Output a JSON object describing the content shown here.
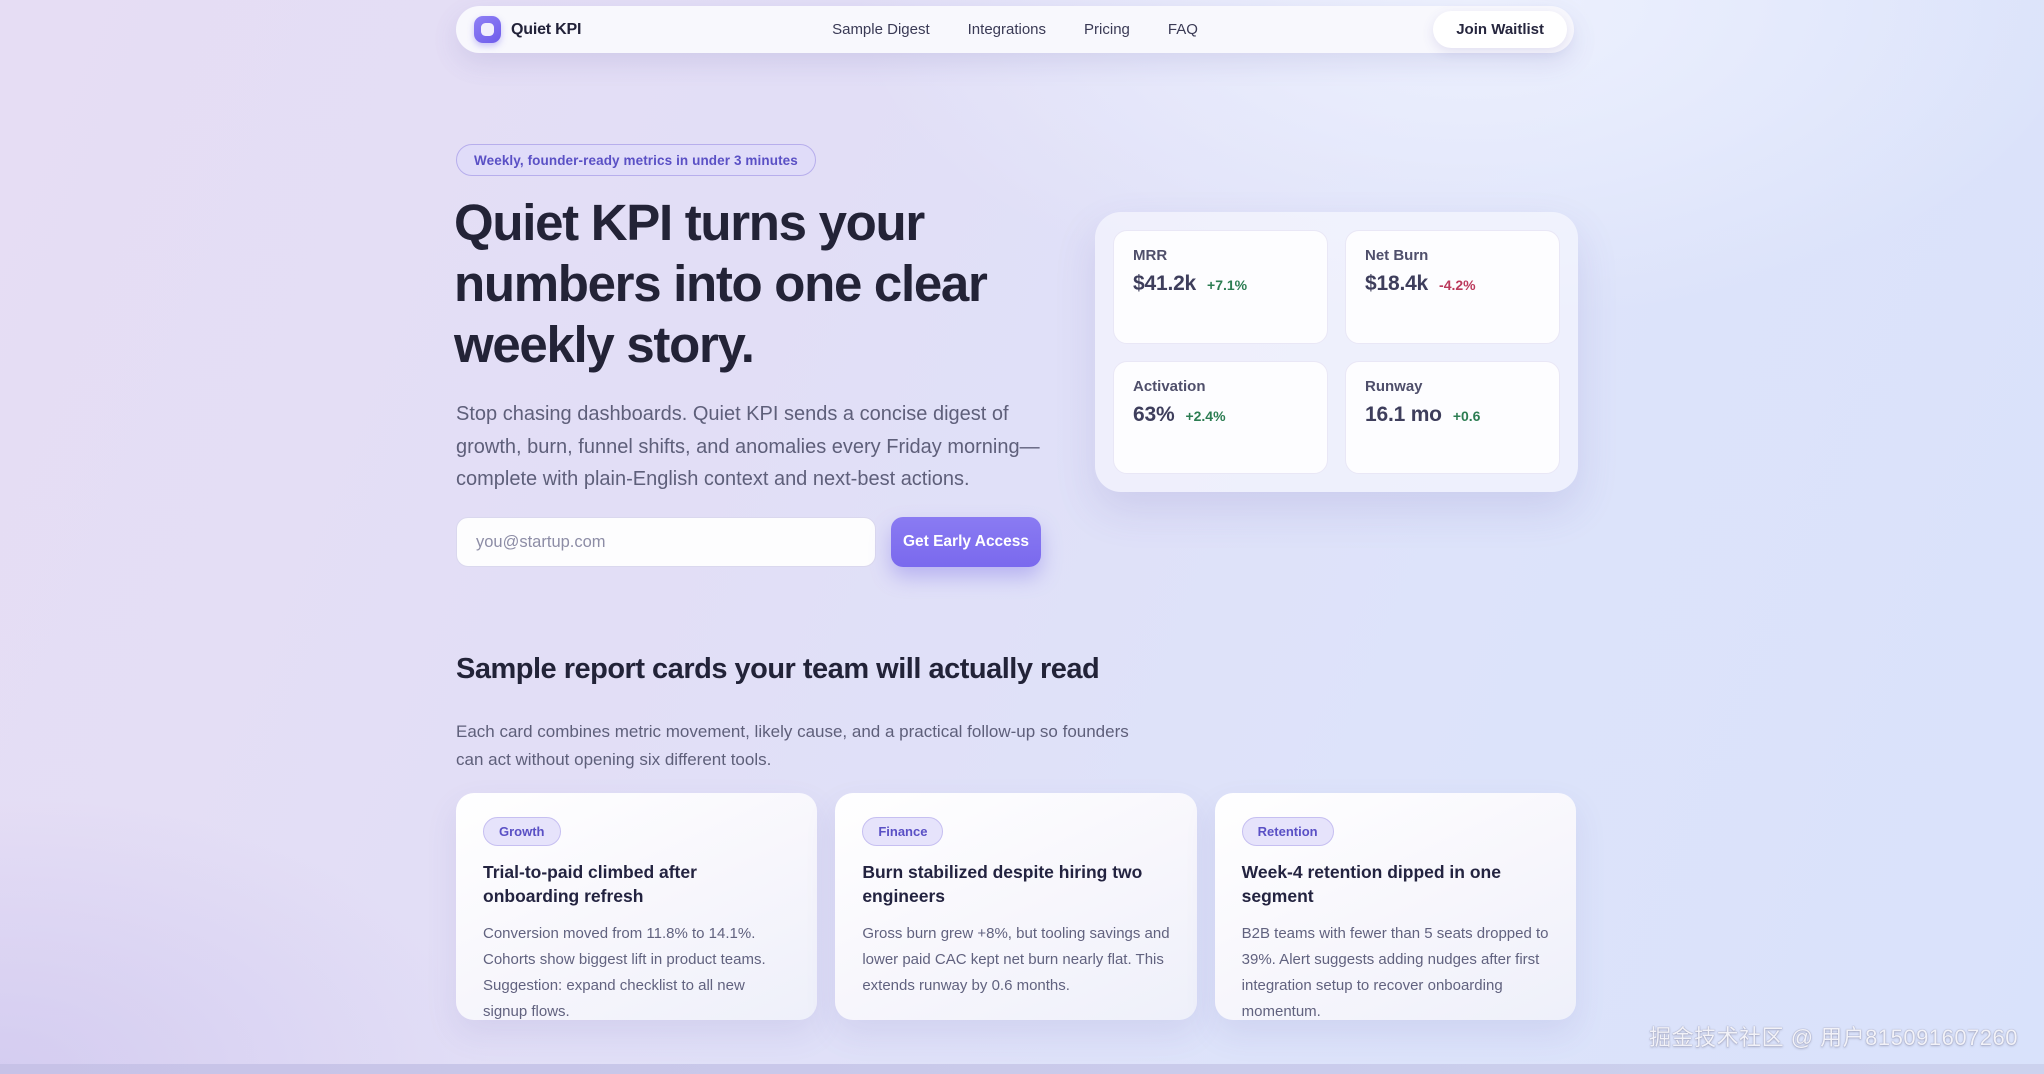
{
  "nav": {
    "brand": "Quiet KPI",
    "links": [
      {
        "label": "Sample Digest"
      },
      {
        "label": "Integrations"
      },
      {
        "label": "Pricing"
      },
      {
        "label": "FAQ"
      }
    ],
    "cta_label": "Join Waitlist"
  },
  "hero": {
    "badge": "Weekly, founder-ready metrics in under 3 minutes",
    "title_lines": [
      "Quiet KPI turns your",
      "numbers into one clear",
      "weekly story."
    ],
    "description": "Stop chasing dashboards. Quiet KPI sends a concise digest of growth, burn, funnel shifts, and anomalies every Friday morning—complete with plain-English context and next-best actions.",
    "email_placeholder": "you@startup.com",
    "cta_label": "Get Early Access",
    "kpis": [
      {
        "label": "MRR",
        "value": "$41.2k",
        "delta": "+7.1%",
        "trend": "up"
      },
      {
        "label": "Net Burn",
        "value": "$18.4k",
        "delta": "-4.2%",
        "trend": "down"
      },
      {
        "label": "Activation",
        "value": "63%",
        "delta": "+2.4%",
        "trend": "up"
      },
      {
        "label": "Runway",
        "value": "16.1 mo",
        "delta": "+0.6",
        "trend": "up"
      }
    ]
  },
  "reports": {
    "title": "Sample report cards your team will actually read",
    "subtitle": "Each card combines metric movement, likely cause, and a practical follow-up so founders can act without opening six different tools.",
    "cards": [
      {
        "tag": "Growth",
        "title": "Trial-to-paid climbed after onboarding refresh",
        "body": "Conversion moved from 11.8% to 14.1%. Cohorts show biggest lift in product teams. Suggestion: expand checklist to all new signup flows."
      },
      {
        "tag": "Finance",
        "title": "Burn stabilized despite hiring two engineers",
        "body": "Gross burn grew +8%, but tooling savings and lower paid CAC kept net burn nearly flat. This extends runway by 0.6 months."
      },
      {
        "tag": "Retention",
        "title": "Week-4 retention dipped in one segment",
        "body": "B2B teams with fewer than 5 seats dropped to 39%. Alert suggests adding nudges after first integration setup to recover onboarding momentum."
      }
    ]
  },
  "watermark": "掘金技术社区 @ 用户815091607260",
  "colors": {
    "accent": "#7a69ee",
    "positive": "#2c7d52",
    "negative": "#bb3a5c",
    "heading": "#232337",
    "body_text": "#5e5f7a"
  }
}
